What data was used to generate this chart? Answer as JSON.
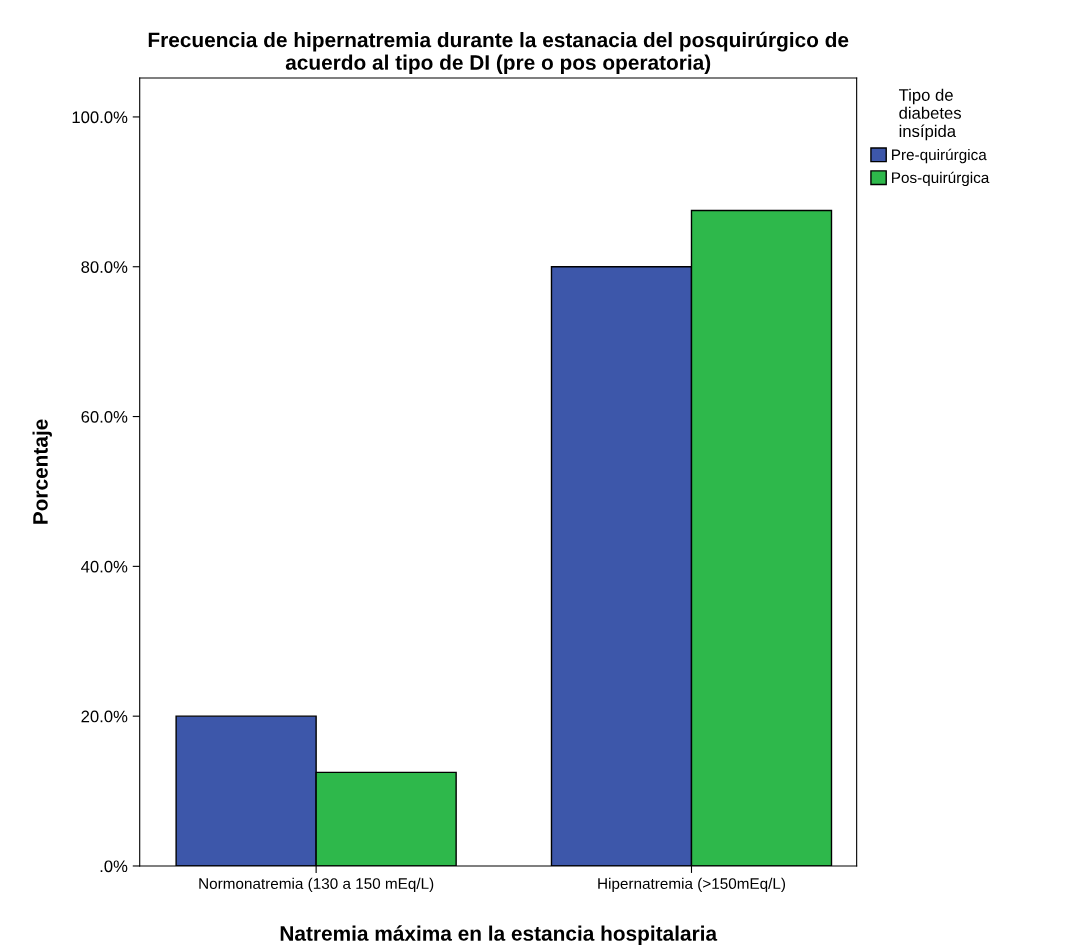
{
  "chart_data": {
    "type": "bar",
    "title": "Frecuencia de hipernatremia durante la estanacia del posquirúrgico de\nacuerdo al tipo de DI (pre o pos operatoria)",
    "xlabel": "Natremia máxima en la estancia hospitalaria",
    "ylabel": "Porcentaje",
    "legend_title": "Tipo de\ndiabetes\ninsípida",
    "categories": [
      "Normonatremia (130 a 150 mEq/L)",
      "Hipernatremia (>150mEq/L)"
    ],
    "series": [
      {
        "name": "Pre-quirúrgica",
        "color": "#3d57aa",
        "values": [
          20,
          80
        ]
      },
      {
        "name": "Pos-quirúrgica",
        "color": "#2eb84b",
        "values": [
          12.5,
          87.5
        ]
      }
    ],
    "ylim": [
      0,
      105.2
    ],
    "yticks": [
      {
        "value": 0,
        "label": ".0%"
      },
      {
        "value": 20,
        "label": "20.0%"
      },
      {
        "value": 40,
        "label": "40.0%"
      },
      {
        "value": 60,
        "label": "60.0%"
      },
      {
        "value": 80,
        "label": "80.0%"
      },
      {
        "value": 100,
        "label": "100.0%"
      }
    ],
    "grid": false,
    "legend": "top right"
  }
}
